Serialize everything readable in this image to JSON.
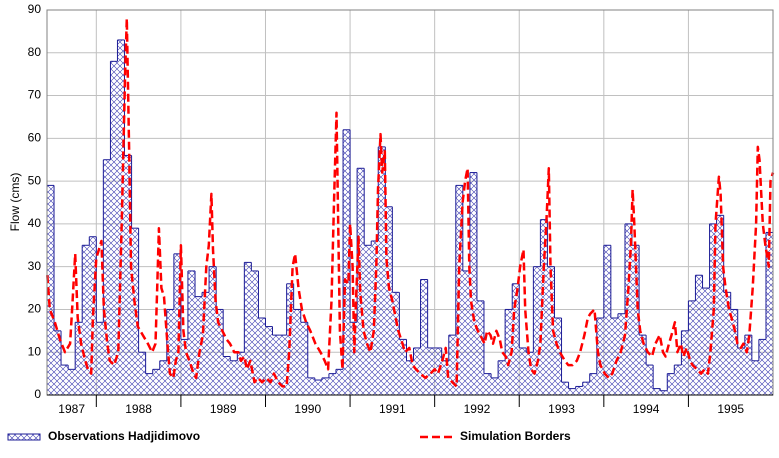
{
  "chart_data": {
    "type": "line",
    "y_label": "Flow (cms)",
    "xlim": [
      1987.417,
      1996
    ],
    "ylim": [
      0,
      90
    ],
    "yticks": [
      0,
      10,
      20,
      30,
      40,
      50,
      60,
      70,
      80,
      90
    ],
    "xticks": [
      1987,
      1988,
      1989,
      1990,
      1991,
      1992,
      1993,
      1994,
      1995
    ],
    "grid": true,
    "legend": "bottom",
    "series": [
      {
        "name": "Observations Hadjidimovo",
        "type": "step",
        "color": "#1c1c96",
        "bins": [
          1987.417,
          1987.5,
          1987.583,
          1987.667,
          1987.75,
          1987.833,
          1987.917,
          1988,
          1988.083,
          1988.167,
          1988.25,
          1988.333,
          1988.417,
          1988.5,
          1988.583,
          1988.667,
          1988.75,
          1988.833,
          1988.917,
          1989,
          1989.083,
          1989.167,
          1989.25,
          1989.333,
          1989.417,
          1989.5,
          1989.583,
          1989.667,
          1989.75,
          1989.833,
          1989.917,
          1990,
          1990.083,
          1990.167,
          1990.25,
          1990.333,
          1990.417,
          1990.5,
          1990.583,
          1990.667,
          1990.75,
          1990.833,
          1990.917,
          1991,
          1991.083,
          1991.167,
          1991.25,
          1991.333,
          1991.417,
          1991.5,
          1991.583,
          1991.667,
          1991.75,
          1991.833,
          1991.917,
          1992,
          1992.083,
          1992.167,
          1992.25,
          1992.333,
          1992.417,
          1992.5,
          1992.583,
          1992.667,
          1992.75,
          1992.833,
          1992.917,
          1993,
          1993.083,
          1993.167,
          1993.25,
          1993.333,
          1993.417,
          1993.5,
          1993.583,
          1993.667,
          1993.75,
          1993.833,
          1993.917,
          1994,
          1994.083,
          1994.167,
          1994.25,
          1994.333,
          1994.417,
          1994.5,
          1994.583,
          1994.667,
          1994.75,
          1994.833,
          1994.917,
          1995,
          1995.083,
          1995.167,
          1995.25,
          1995.333,
          1995.417,
          1995.5,
          1995.583,
          1995.667,
          1995.75,
          1995.833,
          1995.917,
          1996
        ],
        "values": [
          49,
          15,
          7,
          6,
          17,
          35,
          37,
          17,
          55,
          78,
          83,
          56,
          39,
          10,
          5,
          6,
          8,
          20,
          33,
          13,
          29,
          23,
          24,
          30,
          20,
          9,
          8,
          10,
          31,
          29,
          18,
          16,
          14,
          14,
          26,
          20,
          17,
          4,
          3.5,
          4,
          5,
          6,
          62,
          17,
          53,
          35,
          36,
          58,
          44,
          24,
          13,
          8,
          11,
          27,
          11,
          11,
          8,
          14,
          49,
          29,
          52,
          22,
          5,
          4,
          8,
          20,
          26,
          11,
          10,
          30,
          41,
          30,
          18,
          3,
          1.5,
          2,
          3,
          5,
          18,
          35,
          18,
          19,
          40,
          35,
          14,
          7,
          1.5,
          1,
          5,
          7,
          15,
          22,
          28,
          25,
          40,
          42,
          24,
          20,
          11,
          14,
          8,
          13,
          38
        ]
      },
      {
        "name": "Simulation Borders",
        "type": "line",
        "color": "#ff0000",
        "x": [
          1987.42,
          1987.45,
          1987.51,
          1987.57,
          1987.63,
          1987.69,
          1987.72,
          1987.75,
          1987.78,
          1987.82,
          1987.87,
          1987.9,
          1987.94,
          1987.96,
          1988.0,
          1988.03,
          1988.06,
          1988.09,
          1988.13,
          1988.16,
          1988.21,
          1988.26,
          1988.3,
          1988.34,
          1988.36,
          1988.39,
          1988.41,
          1988.45,
          1988.49,
          1988.55,
          1988.61,
          1988.66,
          1988.7,
          1988.72,
          1988.74,
          1988.77,
          1988.8,
          1988.84,
          1988.87,
          1988.91,
          1988.94,
          1988.97,
          1989.0,
          1989.03,
          1989.06,
          1989.1,
          1989.15,
          1989.18,
          1989.22,
          1989.26,
          1989.3,
          1989.33,
          1989.36,
          1989.38,
          1989.41,
          1989.44,
          1989.49,
          1989.54,
          1989.58,
          1989.63,
          1989.68,
          1989.71,
          1989.75,
          1989.78,
          1989.82,
          1989.87,
          1989.91,
          1989.96,
          1990.01,
          1990.06,
          1990.1,
          1990.15,
          1990.2,
          1990.25,
          1990.28,
          1990.32,
          1990.35,
          1990.39,
          1990.43,
          1990.48,
          1990.53,
          1990.59,
          1990.65,
          1990.7,
          1990.74,
          1990.78,
          1990.81,
          1990.84,
          1990.86,
          1990.88,
          1990.91,
          1990.94,
          1990.98,
          1991.0,
          1991.03,
          1991.05,
          1991.07,
          1991.1,
          1991.12,
          1991.16,
          1991.2,
          1991.24,
          1991.28,
          1991.31,
          1991.33,
          1991.36,
          1991.38,
          1991.41,
          1991.43,
          1991.46,
          1991.5,
          1991.54,
          1991.57,
          1991.62,
          1991.65,
          1991.7,
          1991.74,
          1991.78,
          1991.83,
          1991.89,
          1991.95,
          1992.0,
          1992.04,
          1992.09,
          1992.13,
          1992.16,
          1992.21,
          1992.26,
          1992.29,
          1992.33,
          1992.36,
          1992.39,
          1992.41,
          1992.43,
          1992.47,
          1992.51,
          1992.54,
          1992.59,
          1992.62,
          1992.66,
          1992.69,
          1992.73,
          1992.77,
          1992.8,
          1992.84,
          1992.87,
          1992.91,
          1992.94,
          1992.98,
          1993.01,
          1993.05,
          1993.07,
          1993.11,
          1993.14,
          1993.18,
          1993.22,
          1993.25,
          1993.29,
          1993.32,
          1993.35,
          1993.37,
          1993.4,
          1993.44,
          1993.48,
          1993.54,
          1993.58,
          1993.63,
          1993.68,
          1993.72,
          1993.77,
          1993.81,
          1993.84,
          1993.89,
          1993.93,
          1993.96,
          1994.01,
          1994.06,
          1994.1,
          1994.15,
          1994.2,
          1994.25,
          1994.29,
          1994.32,
          1994.34,
          1994.36,
          1994.4,
          1994.43,
          1994.47,
          1994.52,
          1994.57,
          1994.61,
          1994.66,
          1994.7,
          1994.73,
          1994.77,
          1994.8,
          1994.84,
          1994.87,
          1994.91,
          1994.94,
          1994.98,
          1995.02,
          1995.05,
          1995.1,
          1995.15,
          1995.19,
          1995.23,
          1995.26,
          1995.3,
          1995.32,
          1995.36,
          1995.38,
          1995.41,
          1995.44,
          1995.48,
          1995.51,
          1995.55,
          1995.58,
          1995.62,
          1995.65,
          1995.69,
          1995.72,
          1995.76,
          1995.8,
          1995.82,
          1995.84,
          1995.88,
          1995.91,
          1995.95,
          1995.97,
          1996.0
        ],
        "values": [
          28,
          20,
          17,
          13,
          10,
          12,
          22,
          33,
          18,
          12,
          8,
          6,
          5,
          18,
          32,
          34,
          36,
          20,
          12,
          8,
          7,
          10,
          40,
          75,
          88,
          55,
          30,
          22,
          16,
          14,
          12,
          10,
          12,
          25,
          39,
          25,
          23,
          12,
          5,
          4,
          8,
          10,
          35,
          15,
          10,
          8,
          5,
          4,
          10,
          14,
          30,
          35,
          47,
          34,
          22,
          17,
          15,
          13,
          12,
          10,
          10,
          8,
          9,
          6,
          8,
          3,
          4,
          3,
          4,
          3,
          5,
          3,
          2,
          2,
          10,
          30,
          33,
          25,
          20,
          17,
          15,
          12,
          10,
          8,
          6,
          22,
          45,
          66,
          40,
          15,
          6,
          27,
          26,
          40,
          30,
          10,
          22,
          37,
          24,
          15,
          12,
          10,
          15,
          30,
          48,
          61,
          52,
          57,
          32,
          25,
          22,
          18,
          15,
          12,
          10,
          11,
          7,
          6,
          5,
          4,
          5,
          6,
          5,
          8,
          11,
          4,
          3,
          2,
          30,
          45,
          50,
          53,
          30,
          22,
          17,
          15,
          14,
          12,
          15,
          14,
          12,
          15,
          13,
          10,
          9,
          7,
          10,
          20,
          25,
          30,
          34,
          20,
          10,
          6,
          5,
          8,
          12,
          30,
          40,
          53,
          30,
          15,
          12,
          10,
          8,
          7,
          7,
          8,
          10,
          14,
          18,
          19,
          20,
          10,
          7,
          5,
          4,
          5,
          8,
          10,
          14,
          25,
          35,
          48,
          40,
          20,
          15,
          12,
          10,
          9,
          12,
          14,
          10,
          9,
          12,
          14,
          17,
          10,
          12,
          9,
          11,
          8,
          7,
          6,
          5,
          6,
          5,
          10,
          20,
          40,
          51,
          47,
          30,
          25,
          20,
          18,
          15,
          12,
          11,
          12,
          10,
          14,
          25,
          40,
          58,
          55,
          40,
          35,
          30,
          50,
          52
        ]
      }
    ]
  }
}
